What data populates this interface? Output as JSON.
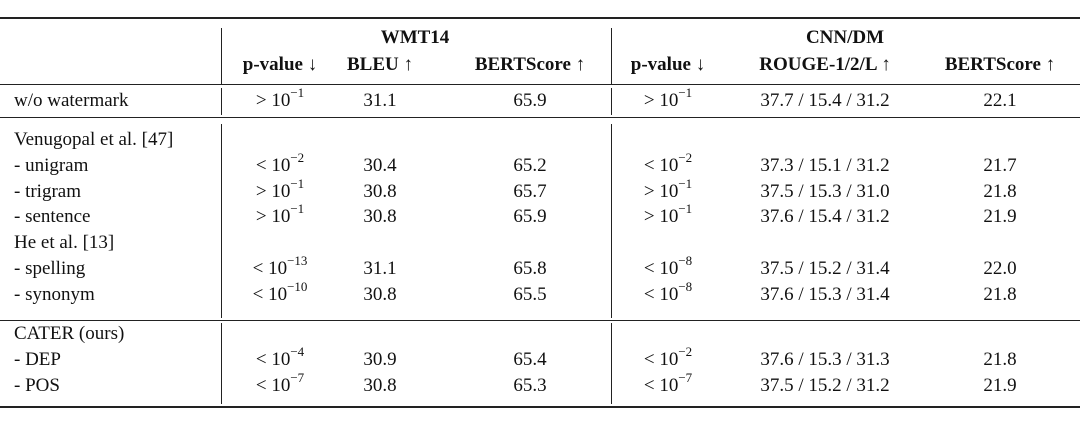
{
  "header": {
    "groups": [
      "WMT14",
      "CNN/DM"
    ],
    "columns": [
      "p-value ↓",
      "BLEU ↑",
      "BERTScore ↑",
      "p-value ↓",
      "ROUGE-1/2/L ↑",
      "BERTScore ↑"
    ]
  },
  "table": {
    "sections": [
      {
        "rows": [
          {
            "label": "w/o watermark",
            "cells": [
              {
                "sign": ">",
                "base": "10",
                "exp": "−1"
              },
              "31.1",
              "65.9",
              {
                "sign": ">",
                "base": "10",
                "exp": "−1"
              },
              "37.7 / 15.4 / 31.2",
              "22.1"
            ]
          }
        ]
      },
      {
        "rows": [
          {
            "label": "Venugopal et al. [47]"
          },
          {
            "label": "- unigram",
            "cells": [
              {
                "sign": "<",
                "base": "10",
                "exp": "−2"
              },
              "30.4",
              "65.2",
              {
                "sign": "<",
                "base": "10",
                "exp": "−2"
              },
              "37.3 / 15.1 / 31.2",
              "21.7"
            ]
          },
          {
            "label": "- trigram",
            "cells": [
              {
                "sign": ">",
                "base": "10",
                "exp": "−1"
              },
              "30.8",
              "65.7",
              {
                "sign": ">",
                "base": "10",
                "exp": "−1"
              },
              "37.5 / 15.3 / 31.0",
              "21.8"
            ]
          },
          {
            "label": "- sentence",
            "cells": [
              {
                "sign": ">",
                "base": "10",
                "exp": "−1"
              },
              "30.8",
              "65.9",
              {
                "sign": ">",
                "base": "10",
                "exp": "−1"
              },
              "37.6 / 15.4 / 31.2",
              "21.9"
            ]
          },
          {
            "label": "He et al. [13]"
          },
          {
            "label": "- spelling",
            "cells": [
              {
                "sign": "<",
                "base": "10",
                "exp": "−13"
              },
              "31.1",
              "65.8",
              {
                "sign": "<",
                "base": "10",
                "exp": "−8"
              },
              "37.5 / 15.2 / 31.4",
              "22.0"
            ]
          },
          {
            "label": "- synonym",
            "cells": [
              {
                "sign": "<",
                "base": "10",
                "exp": "−10"
              },
              "30.8",
              "65.5",
              {
                "sign": "<",
                "base": "10",
                "exp": "−8"
              },
              "37.6 / 15.3 / 31.4",
              "21.8"
            ]
          }
        ]
      },
      {
        "rows": [
          {
            "label": "CATER (ours)"
          },
          {
            "label": "- DEP",
            "cells": [
              {
                "sign": "<",
                "base": "10",
                "exp": "−4"
              },
              "30.9",
              "65.4",
              {
                "sign": "<",
                "base": "10",
                "exp": "−2"
              },
              "37.6 / 15.3 / 31.3",
              "21.8"
            ]
          },
          {
            "label": "- POS",
            "cells": [
              {
                "sign": "<",
                "base": "10",
                "exp": "−7"
              },
              "30.8",
              "65.3",
              {
                "sign": "<",
                "base": "10",
                "exp": "−7"
              },
              "37.5 / 15.2 / 31.2",
              "21.9"
            ]
          }
        ]
      }
    ]
  }
}
